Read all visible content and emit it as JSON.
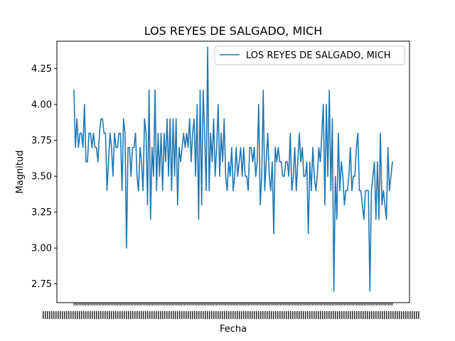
{
  "chart_data": {
    "type": "line",
    "title": "LOS REYES DE SALGADO, MICH",
    "xlabel": "Fecha",
    "ylabel": "Magnitud",
    "ylim": [
      2.62,
      4.44
    ],
    "yticks": [
      "2.75",
      "3.00",
      "3.25",
      "3.50",
      "3.75",
      "4.00",
      "4.25"
    ],
    "grid": false,
    "legend_position": "top-right",
    "series_color": "#1f77b4",
    "series": [
      {
        "name": "LOS REYES DE SALGADO, MICH",
        "values": [
          4.1,
          3.7,
          3.9,
          3.7,
          3.8,
          3.8,
          3.7,
          4.0,
          3.6,
          3.6,
          3.8,
          3.8,
          3.7,
          3.8,
          3.7,
          3.7,
          3.6,
          3.8,
          3.9,
          3.9,
          3.8,
          3.8,
          3.4,
          3.6,
          3.8,
          3.7,
          3.5,
          3.8,
          3.7,
          3.7,
          3.8,
          3.8,
          3.4,
          3.9,
          3.8,
          3.0,
          3.7,
          3.7,
          3.5,
          3.7,
          3.7,
          3.8,
          3.5,
          3.4,
          3.7,
          3.6,
          3.4,
          3.9,
          3.8,
          3.3,
          4.1,
          3.2,
          3.7,
          3.5,
          4.1,
          3.4,
          3.8,
          3.5,
          3.8,
          3.4,
          3.8,
          3.6,
          3.9,
          3.5,
          3.9,
          3.4,
          3.9,
          3.5,
          3.9,
          3.3,
          3.7,
          3.6,
          3.7,
          3.8,
          3.7,
          3.8,
          3.7,
          3.9,
          3.6,
          3.8,
          3.9,
          3.5,
          4.0,
          3.2,
          4.1,
          3.3,
          4.1,
          3.8,
          3.4,
          4.4,
          3.4,
          3.8,
          3.6,
          3.9,
          3.5,
          3.7,
          4.0,
          3.5,
          3.8,
          3.6,
          3.9,
          3.5,
          3.4,
          3.6,
          3.5,
          3.7,
          3.4,
          3.5,
          3.7,
          3.5,
          3.6,
          3.7,
          3.5,
          3.7,
          3.5,
          3.5,
          3.4,
          3.7,
          3.7,
          3.6,
          3.7,
          3.5,
          3.6,
          4.0,
          3.3,
          3.5,
          4.1,
          3.4,
          3.6,
          3.8,
          3.5,
          3.4,
          3.6,
          3.1,
          3.7,
          3.6,
          3.7,
          3.6,
          3.6,
          3.5,
          3.5,
          3.6,
          3.6,
          3.5,
          3.8,
          3.4,
          3.5,
          3.7,
          3.4,
          3.6,
          3.8,
          3.6,
          3.7,
          3.5,
          3.5,
          3.6,
          3.1,
          3.6,
          3.4,
          3.7,
          3.5,
          3.4,
          3.5,
          3.7,
          3.6,
          3.8,
          4.0,
          3.3,
          4.0,
          3.5,
          4.1,
          3.4,
          3.9,
          2.7,
          3.5,
          3.2,
          3.8,
          3.4,
          3.6,
          3.5,
          3.3,
          3.4,
          3.4,
          3.5,
          3.7,
          3.4,
          3.5,
          3.5,
          3.7,
          3.8,
          3.4,
          3.4,
          3.3,
          3.2,
          3.4,
          3.4,
          3.4,
          2.7,
          3.4,
          3.5,
          3.6,
          3.2,
          3.6,
          3.2,
          3.8,
          3.3,
          3.4,
          3.3,
          3.2,
          3.7,
          3.4,
          3.5,
          3.6
        ]
      }
    ],
    "x_tick_count": 240
  }
}
